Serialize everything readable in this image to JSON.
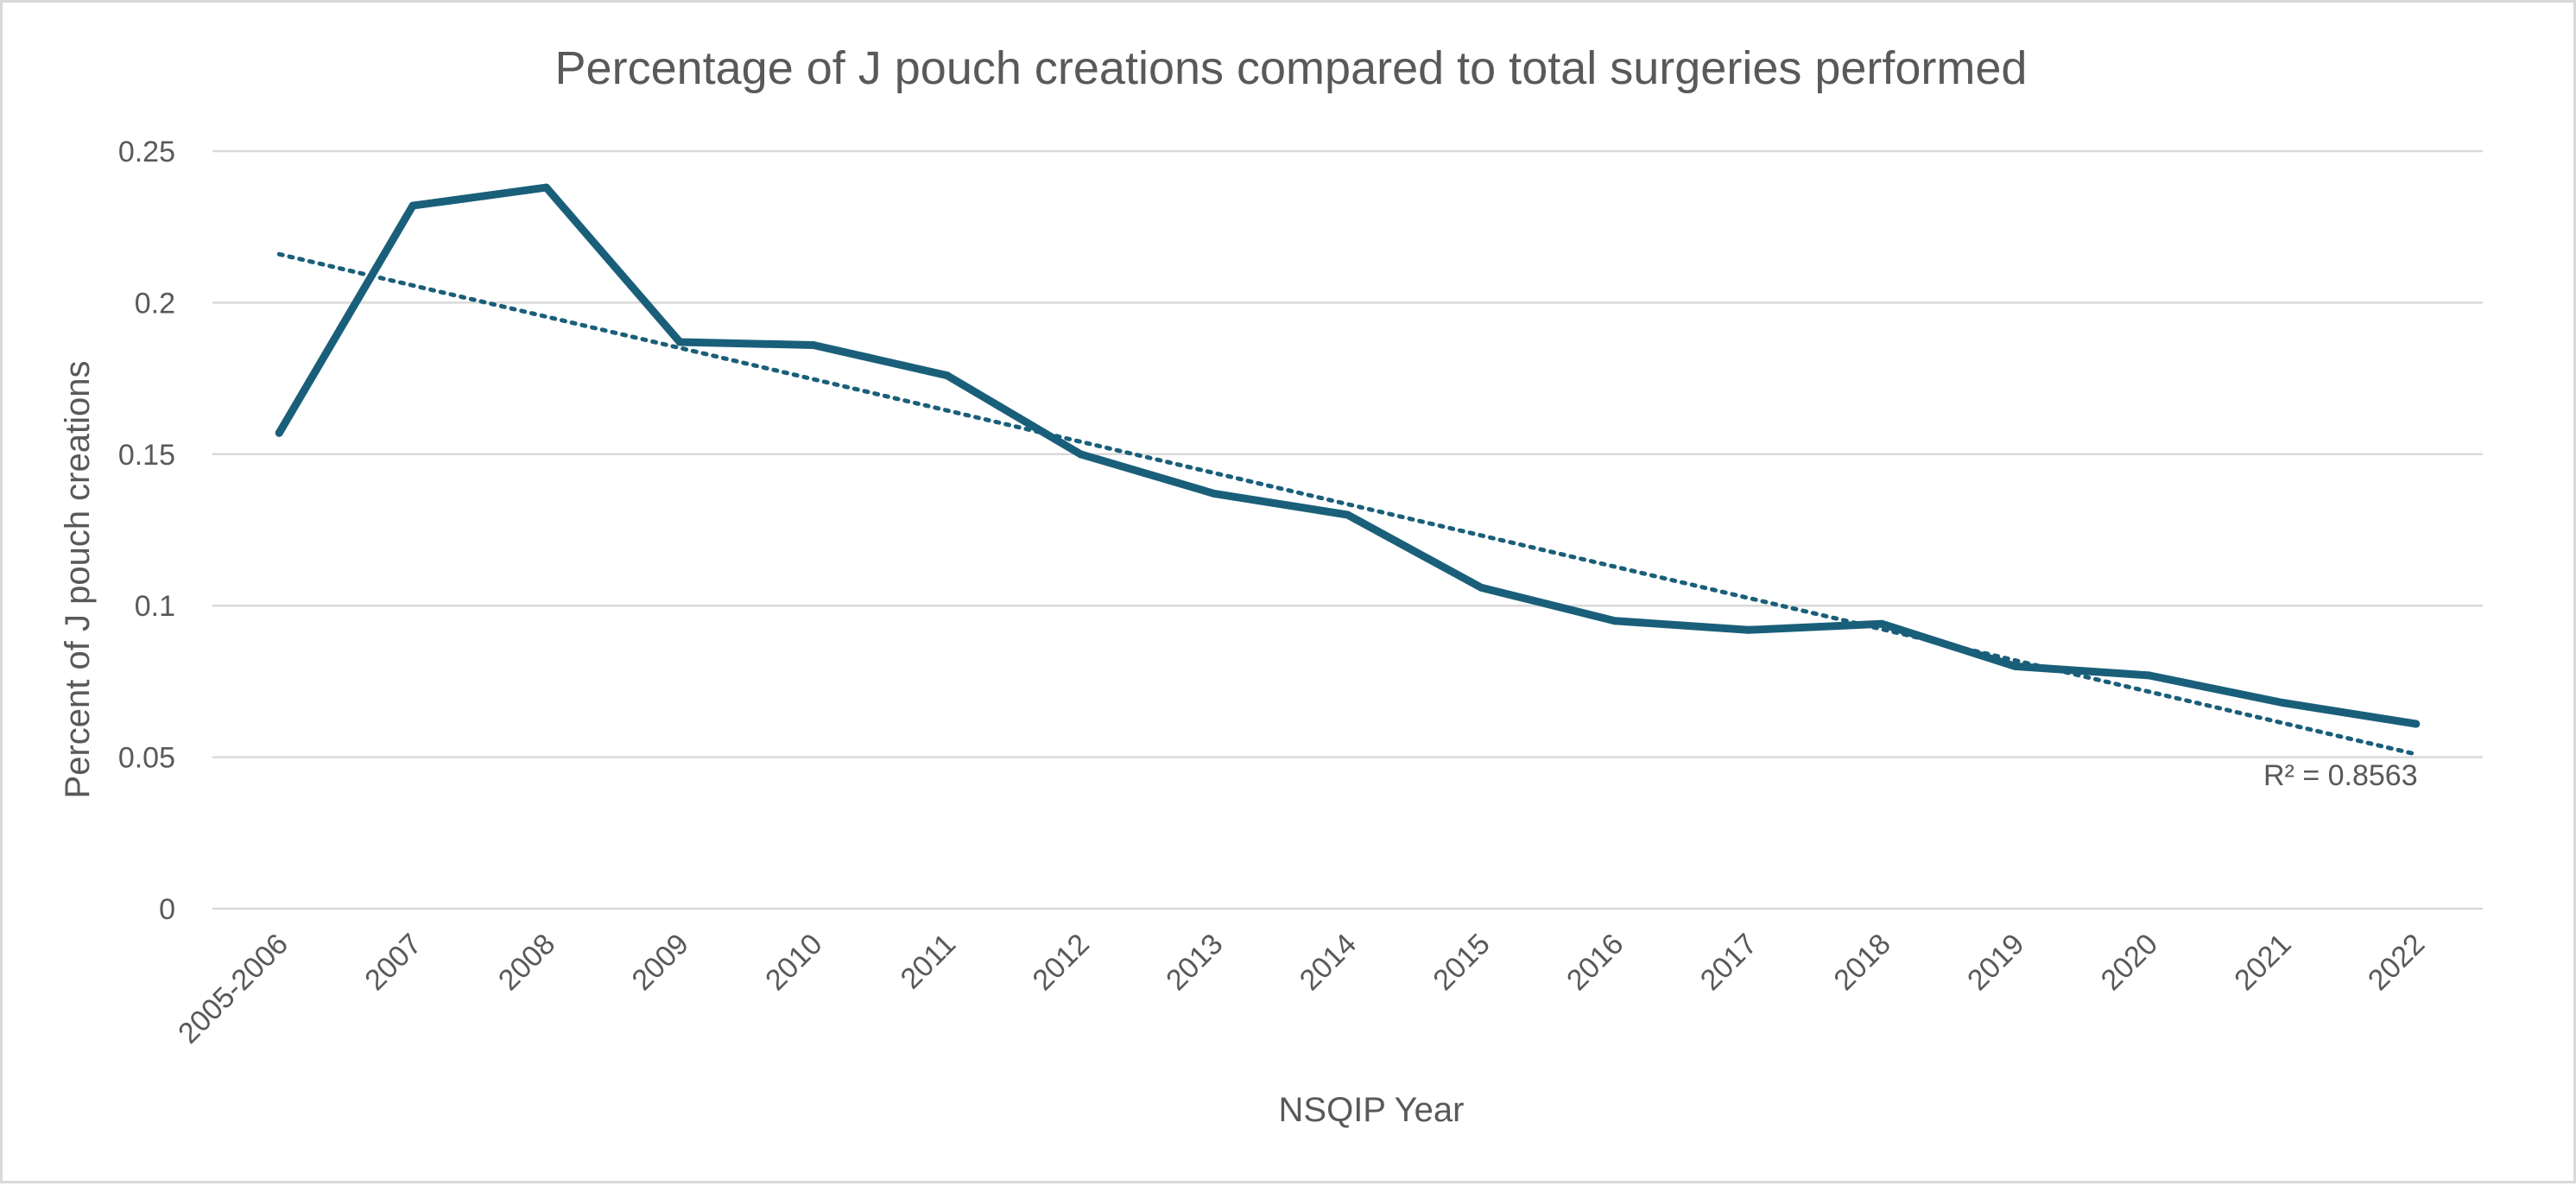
{
  "chart_data": {
    "type": "line",
    "title": "Percentage of J pouch creations compared to total surgeries performed",
    "xlabel": "NSQIP Year",
    "ylabel": "Percent of J pouch creations",
    "ylim": [
      0,
      0.25
    ],
    "yticks": [
      "0",
      "0.05",
      "0.1",
      "0.15",
      "0.2",
      "0.25"
    ],
    "grid": true,
    "categories": [
      "2005-2006",
      "2007",
      "2008",
      "2009",
      "2010",
      "2011",
      "2012",
      "2013",
      "2014",
      "2015",
      "2016",
      "2017",
      "2018",
      "2019",
      "2020",
      "2021",
      "2022"
    ],
    "series": [
      {
        "values": [
          0.157,
          0.232,
          0.238,
          0.187,
          0.186,
          0.176,
          0.15,
          0.137,
          0.13,
          0.106,
          0.095,
          0.092,
          0.094,
          0.08,
          0.077,
          0.068,
          0.061
        ],
        "color": "#1a5f7a"
      }
    ],
    "trendline": {
      "type": "linear",
      "start": 0.216,
      "end": 0.051,
      "color": "#1a5f7a",
      "r_squared_label": "R² = 0.8563"
    }
  }
}
